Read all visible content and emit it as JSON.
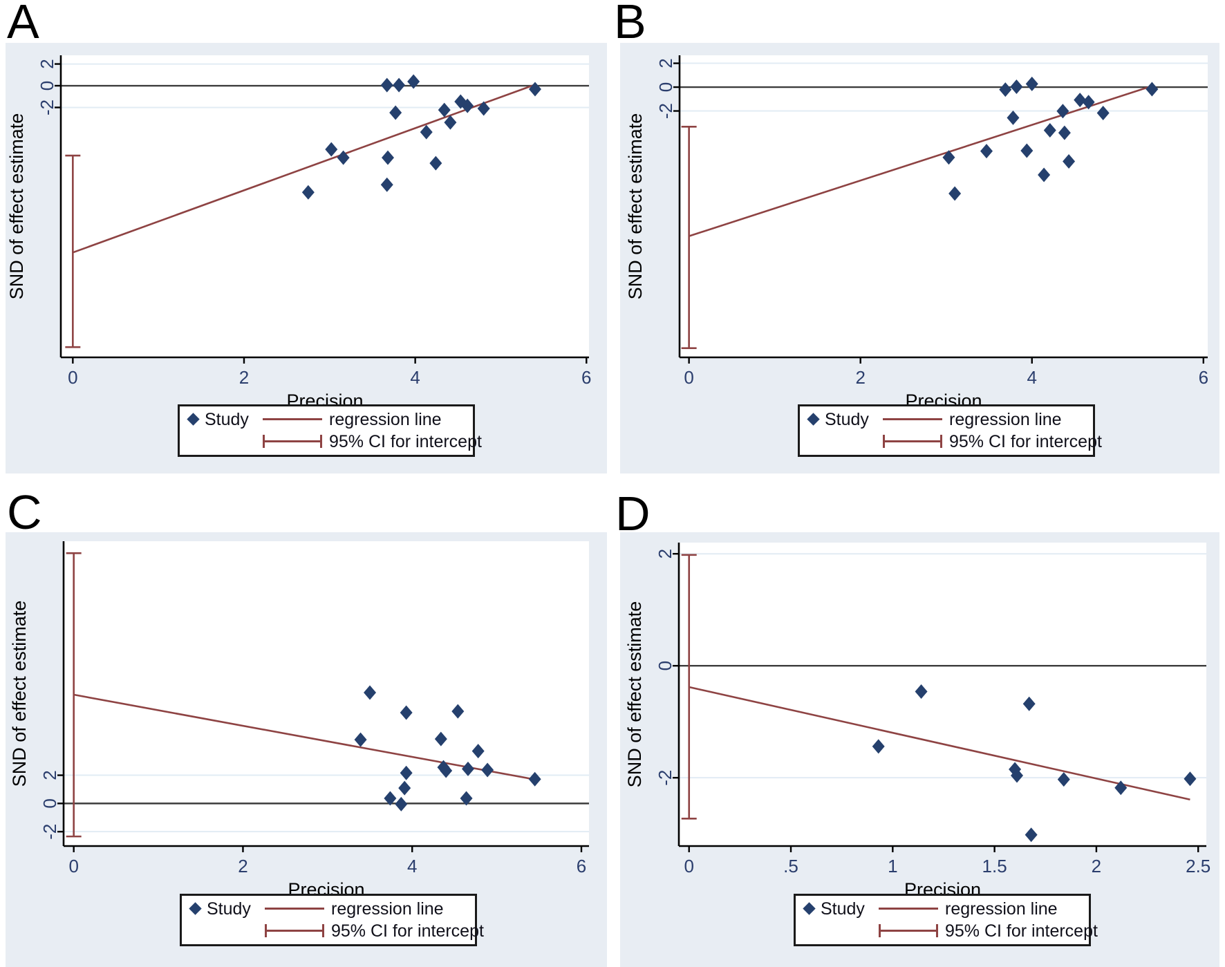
{
  "figure": {
    "type": "galbraith-plot-grid",
    "colors": {
      "panel_background": "#e8edf3",
      "plot_background": "#ffffff",
      "gridline": "#e2ecf4",
      "zero_line": "#3c3c3c",
      "axis_line": "#000000",
      "marker": "#25406d",
      "regression": "#8e4343",
      "tick_label": "#2b3e6d",
      "axis_label": "#000000"
    }
  },
  "legend": {
    "study": "Study",
    "regression": "regression line",
    "ci": "95% CI for intercept"
  },
  "chart_data": [
    {
      "label": "A",
      "type": "scatter",
      "xlabel": "Precision",
      "ylabel": "SND of effect estimate",
      "xlim": [
        -0.14,
        6.03
      ],
      "ylim": [
        -25.0,
        2.8
      ],
      "x_ticks": [
        0,
        2,
        4,
        6
      ],
      "x_tick_labels": [
        "0",
        "2",
        "4",
        "6"
      ],
      "y_ticks": [
        2,
        0,
        -2
      ],
      "y_tick_labels": [
        "2",
        "0",
        "-2"
      ],
      "grid_y": [
        2,
        -2
      ],
      "zero_line_y": 0,
      "points": [
        [
          3.67,
          0.06
        ],
        [
          3.81,
          0.06
        ],
        [
          3.98,
          0.38
        ],
        [
          5.4,
          -0.32
        ],
        [
          3.77,
          -2.48
        ],
        [
          4.34,
          -2.23
        ],
        [
          4.41,
          -3.38
        ],
        [
          4.53,
          -1.46
        ],
        [
          4.61,
          -1.85
        ],
        [
          4.8,
          -2.1
        ],
        [
          4.13,
          -4.27
        ],
        [
          3.02,
          -5.86
        ],
        [
          3.16,
          -6.62
        ],
        [
          3.68,
          -6.62
        ],
        [
          4.24,
          -7.13
        ],
        [
          3.67,
          -9.11
        ],
        [
          2.75,
          -9.81
        ]
      ],
      "regression_line": {
        "x1": 0,
        "y1": -15.35,
        "x2": 5.4,
        "y2": 0.1
      },
      "ci_for_intercept": {
        "x": 0,
        "y_low": -24.06,
        "y_high": -6.43
      }
    },
    {
      "label": "B",
      "type": "scatter",
      "xlabel": "Precision",
      "ylabel": "SND of effect estimate",
      "xlim": [
        -0.11,
        6.05
      ],
      "ylim": [
        -22.67,
        2.67
      ],
      "x_ticks": [
        0,
        2,
        4,
        6
      ],
      "x_tick_labels": [
        "0",
        "2",
        "4",
        "6"
      ],
      "y_ticks": [
        2,
        0,
        -2
      ],
      "y_tick_labels": [
        "2",
        "0",
        "-2"
      ],
      "grid_y": [
        2,
        -2
      ],
      "zero_line_y": 0,
      "points": [
        [
          3.69,
          -0.21
        ],
        [
          3.82,
          0.03
        ],
        [
          4.0,
          0.27
        ],
        [
          5.4,
          -0.17
        ],
        [
          4.56,
          -1.08
        ],
        [
          4.66,
          -1.26
        ],
        [
          4.36,
          -2.01
        ],
        [
          4.83,
          -2.17
        ],
        [
          3.78,
          -2.57
        ],
        [
          4.21,
          -3.62
        ],
        [
          4.38,
          -3.83
        ],
        [
          3.47,
          -5.37
        ],
        [
          3.94,
          -5.33
        ],
        [
          3.03,
          -5.9
        ],
        [
          4.43,
          -6.23
        ],
        [
          4.14,
          -7.36
        ],
        [
          3.1,
          -8.93
        ]
      ],
      "regression_line": {
        "x1": 0,
        "y1": -12.5,
        "x2": 5.39,
        "y2": 0.07
      },
      "ci_for_intercept": {
        "x": 0,
        "y_low": -21.9,
        "y_high": -3.32
      }
    },
    {
      "label": "C",
      "type": "scatter",
      "xlabel": "Precision",
      "ylabel": "SND of effect estimate",
      "xlim": [
        -0.12,
        6.09
      ],
      "ylim": [
        -3.02,
        18.59
      ],
      "x_ticks": [
        0,
        2,
        4,
        6
      ],
      "x_tick_labels": [
        "0",
        "2",
        "4",
        "6"
      ],
      "y_ticks": [
        2,
        0,
        -2
      ],
      "y_tick_labels": [
        "2",
        "0",
        "-2"
      ],
      "grid_y": [
        2,
        -2
      ],
      "zero_line_y": 0,
      "points": [
        [
          3.5,
          7.86
        ],
        [
          3.93,
          6.44
        ],
        [
          4.54,
          6.53
        ],
        [
          3.39,
          4.52
        ],
        [
          4.34,
          4.57
        ],
        [
          4.78,
          3.71
        ],
        [
          4.37,
          2.56
        ],
        [
          4.4,
          2.32
        ],
        [
          4.66,
          2.45
        ],
        [
          4.89,
          2.37
        ],
        [
          3.93,
          2.16
        ],
        [
          3.91,
          1.09
        ],
        [
          3.74,
          0.36
        ],
        [
          3.87,
          -0.05
        ],
        [
          4.64,
          0.36
        ],
        [
          5.45,
          1.72
        ]
      ],
      "regression_line": {
        "x1": 0,
        "y1": 7.71,
        "x2": 5.45,
        "y2": 1.7
      },
      "ci_for_intercept": {
        "x": 0,
        "y_low": -2.34,
        "y_high": 17.74
      }
    },
    {
      "label": "D",
      "type": "scatter",
      "xlabel": "Precision",
      "ylabel": "SND of effect estimate",
      "xlim": [
        -0.05,
        2.54
      ],
      "ylim": [
        -3.22,
        2.2
      ],
      "x_ticks": [
        0,
        0.5,
        1,
        1.5,
        2,
        2.5
      ],
      "x_tick_labels": [
        "0",
        ".5",
        "1",
        "1.5",
        "2",
        "2.5"
      ],
      "y_ticks": [
        2,
        0,
        -2
      ],
      "y_tick_labels": [
        "2",
        "0",
        "-2"
      ],
      "grid_y": [
        2,
        -2
      ],
      "zero_line_y": 0,
      "points": [
        [
          1.14,
          -0.46
        ],
        [
          1.67,
          -0.68
        ],
        [
          0.93,
          -1.44
        ],
        [
          1.6,
          -1.85
        ],
        [
          1.61,
          -1.96
        ],
        [
          1.84,
          -2.03
        ],
        [
          2.12,
          -2.18
        ],
        [
          2.46,
          -2.02
        ],
        [
          1.68,
          -3.02
        ]
      ],
      "regression_line": {
        "x1": 0,
        "y1": -0.38,
        "x2": 2.46,
        "y2": -2.39
      },
      "ci_for_intercept": {
        "x": 0,
        "y_low": -2.73,
        "y_high": 1.98
      }
    }
  ]
}
